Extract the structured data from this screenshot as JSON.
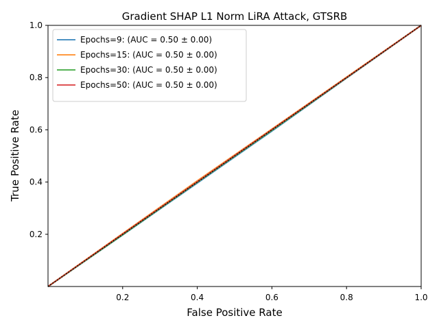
{
  "chart_data": {
    "type": "line",
    "title": "Gradient SHAP L1 Norm LiRA Attack, GTSRB",
    "xlabel": "False Positive Rate",
    "ylabel": "True Positive Rate",
    "xlim": [
      0,
      1
    ],
    "ylim": [
      0,
      1
    ],
    "x_ticks": [
      "0.2",
      "0.4",
      "0.6",
      "0.8",
      "1.0"
    ],
    "y_ticks": [
      "0.2",
      "0.4",
      "0.6",
      "0.8",
      "1.0"
    ],
    "grid": false,
    "legend_position": "top-left",
    "series": [
      {
        "name": "Epochs=9: (AUC = 0.50 ± 0.00)",
        "color": "#1f77b4",
        "x": [
          0,
          0.2,
          0.4,
          0.6,
          0.8,
          1.0
        ],
        "y": [
          0,
          0.197,
          0.396,
          0.595,
          0.798,
          1.0
        ]
      },
      {
        "name": "Epochs=15: (AUC = 0.50 ± 0.00)",
        "color": "#ff7f0e",
        "x": [
          0,
          0.2,
          0.4,
          0.6,
          0.8,
          1.0
        ],
        "y": [
          0,
          0.203,
          0.405,
          0.603,
          0.802,
          1.0
        ]
      },
      {
        "name": "Epochs=30: (AUC = 0.50 ± 0.00)",
        "color": "#2ca02c",
        "x": [
          0,
          0.2,
          0.4,
          0.6,
          0.8,
          1.0
        ],
        "y": [
          0,
          0.198,
          0.399,
          0.598,
          0.799,
          1.0
        ]
      },
      {
        "name": "Epochs=50: (AUC = 0.50 ± 0.00)",
        "color": "#d62728",
        "x": [
          0,
          0.2,
          0.4,
          0.6,
          0.8,
          1.0
        ],
        "y": [
          0,
          0.201,
          0.401,
          0.601,
          0.8,
          1.0
        ]
      }
    ],
    "reference_line": {
      "x": [
        0,
        1
      ],
      "y": [
        0,
        1
      ],
      "color": "#000000",
      "style": "dotted"
    }
  }
}
